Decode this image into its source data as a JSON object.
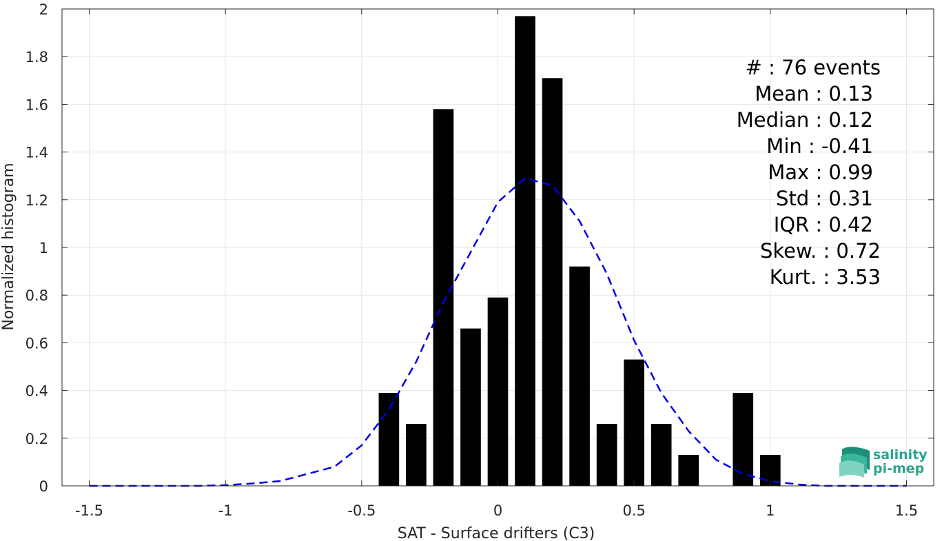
{
  "chart_data": {
    "type": "bar",
    "xlabel": "SAT - Surface drifters (C3)",
    "ylabel": "Normalized histogram",
    "xlim": [
      -1.6,
      1.6
    ],
    "ylim": [
      0,
      2
    ],
    "grid": true,
    "x_ticks": [
      -1.5,
      -1,
      -0.5,
      0,
      0.5,
      1,
      1.5
    ],
    "x_tick_labels": [
      "-1.5",
      "-1",
      "-0.5",
      "0",
      "0.5",
      "1",
      "1.5"
    ],
    "y_ticks": [
      0,
      0.2,
      0.4,
      0.6,
      0.8,
      1,
      1.2,
      1.4,
      1.6,
      1.8,
      2
    ],
    "y_tick_labels": [
      "0",
      "0.2",
      "0.4",
      "0.6",
      "0.8",
      "1",
      "1.2",
      "1.4",
      "1.6",
      "1.8",
      "2"
    ],
    "bar_color": "#000000",
    "bar_width": 0.075,
    "bars": [
      {
        "x": -0.4,
        "y": 0.39
      },
      {
        "x": -0.3,
        "y": 0.26
      },
      {
        "x": -0.2,
        "y": 1.58
      },
      {
        "x": -0.1,
        "y": 0.66
      },
      {
        "x": 0.0,
        "y": 0.79
      },
      {
        "x": 0.1,
        "y": 1.97
      },
      {
        "x": 0.2,
        "y": 1.71
      },
      {
        "x": 0.3,
        "y": 0.92
      },
      {
        "x": 0.4,
        "y": 0.26
      },
      {
        "x": 0.5,
        "y": 0.53
      },
      {
        "x": 0.6,
        "y": 0.26
      },
      {
        "x": 0.7,
        "y": 0.13
      },
      {
        "x": 0.9,
        "y": 0.39
      },
      {
        "x": 1.0,
        "y": 0.13
      }
    ],
    "fit_curve": {
      "style": "dashed",
      "color": "#0000e6",
      "x": [
        -1.5,
        -1.4,
        -1.3,
        -1.2,
        -1.1,
        -1.0,
        -0.9,
        -0.8,
        -0.7,
        -0.6,
        -0.5,
        -0.4,
        -0.3,
        -0.2,
        -0.1,
        0.0,
        0.1,
        0.2,
        0.3,
        0.4,
        0.5,
        0.6,
        0.7,
        0.8,
        0.9,
        1.0,
        1.1,
        1.2,
        1.3,
        1.4,
        1.5
      ],
      "y": [
        0.0,
        0.0,
        0.0,
        0.0,
        0.0,
        0.003,
        0.01,
        0.02,
        0.05,
        0.08,
        0.17,
        0.32,
        0.52,
        0.77,
        0.98,
        1.19,
        1.29,
        1.26,
        1.11,
        0.89,
        0.61,
        0.39,
        0.23,
        0.11,
        0.05,
        0.02,
        0.006,
        0.0,
        0.0,
        0.0,
        0.0
      ]
    },
    "stats_text": [
      "#  : 76 events",
      "Mean : 0.13",
      "Median : 0.12",
      "Min : -0.41",
      "Max : 0.99",
      "Std : 0.31",
      "IQR : 0.42",
      "Skew. : 0.72",
      "Kurt. : 3.53"
    ]
  },
  "logo": {
    "line1": "salinity",
    "line2": "pi-mep",
    "color": "#2aa58e"
  }
}
